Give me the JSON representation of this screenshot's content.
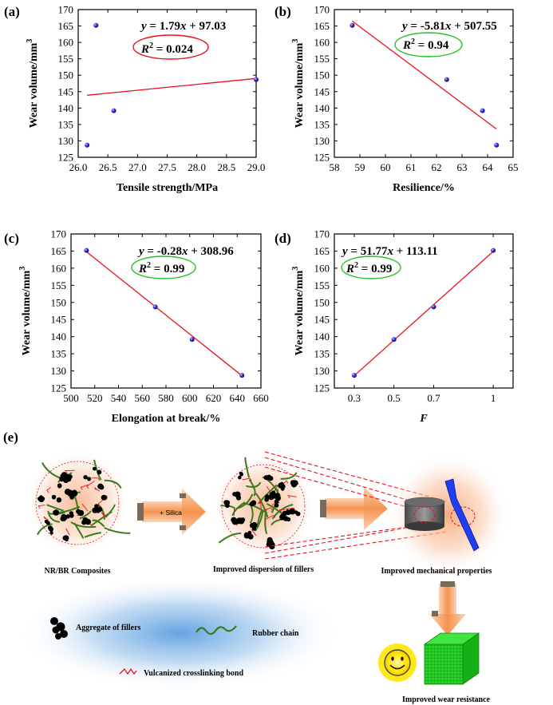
{
  "chart_data": [
    {
      "type": "scatter",
      "panel_label": "(a)",
      "xlabel": "Tensile strength/MPa",
      "ylabel": "Wear volume/mm",
      "ylabel_sup": "3",
      "xlim": [
        26.0,
        29.0
      ],
      "ylim": [
        125,
        170
      ],
      "xticks": [
        "26.0",
        "26.5",
        "27.0",
        "27.5",
        "28.0",
        "28.5",
        "29.0"
      ],
      "yticks": [
        "125",
        "130",
        "135",
        "140",
        "145",
        "150",
        "155",
        "160",
        "165",
        "170"
      ],
      "points": [
        {
          "x": 26.15,
          "y": 128.7
        },
        {
          "x": 26.3,
          "y": 165.2
        },
        {
          "x": 26.6,
          "y": 139.2
        },
        {
          "x": 29.0,
          "y": 148.7
        }
      ],
      "fit": {
        "x": [
          26.15,
          29.0
        ],
        "y": [
          143.9,
          149.0
        ]
      },
      "equation_y": "y",
      "equation_rest": " = 1.79",
      "equation_x": "x",
      "equation_tail": " + 97.03",
      "r2_prefix": "R",
      "r2_sup": "2",
      "r2_value": " = 0.024",
      "highlight_color": "#e8111b"
    },
    {
      "type": "scatter",
      "panel_label": "(b)",
      "xlabel": "Resilience/%",
      "ylabel": "Wear volume/mm",
      "ylabel_sup": "3",
      "xlim": [
        58,
        65
      ],
      "ylim": [
        125,
        170
      ],
      "xticks": [
        "58",
        "59",
        "60",
        "61",
        "62",
        "63",
        "64",
        "65"
      ],
      "yticks": [
        "125",
        "130",
        "135",
        "140",
        "145",
        "150",
        "155",
        "160",
        "165",
        "170"
      ],
      "points": [
        {
          "x": 58.7,
          "y": 165.2
        },
        {
          "x": 62.4,
          "y": 148.7
        },
        {
          "x": 63.8,
          "y": 139.2
        },
        {
          "x": 64.35,
          "y": 128.7
        }
      ],
      "fit": {
        "x": [
          58.7,
          64.35
        ],
        "y": [
          166.5,
          133.6
        ]
      },
      "equation_y": "y",
      "equation_rest": " = -5.81",
      "equation_x": "x",
      "equation_tail": " + 507.55",
      "r2_prefix": "R",
      "r2_sup": "2",
      "r2_value": " = 0.94",
      "highlight_color": "#26c22a"
    },
    {
      "type": "scatter",
      "panel_label": "(c)",
      "xlabel": "Elongation at break/%",
      "ylabel": "Wear volume/mm",
      "ylabel_sup": "3",
      "xlim": [
        500,
        660
      ],
      "ylim": [
        125,
        170
      ],
      "xticks": [
        "500",
        "520",
        "540",
        "560",
        "580",
        "600",
        "620",
        "640",
        "660"
      ],
      "yticks": [
        "125",
        "130",
        "135",
        "140",
        "145",
        "150",
        "155",
        "160",
        "165",
        "170"
      ],
      "points": [
        {
          "x": 513,
          "y": 165.2
        },
        {
          "x": 571,
          "y": 148.7
        },
        {
          "x": 602,
          "y": 139.2
        },
        {
          "x": 644,
          "y": 128.7
        }
      ],
      "fit": {
        "x": [
          513,
          644
        ],
        "y": [
          164.8,
          128.6
        ]
      },
      "equation_y": "y",
      "equation_rest": " = -0.28",
      "equation_x": "x",
      "equation_tail": " + 308.96",
      "r2_prefix": "R",
      "r2_sup": "2",
      "r2_value": " = 0.99",
      "highlight_color": "#26c22a"
    },
    {
      "type": "scatter",
      "panel_label": "(d)",
      "xlabel": "F",
      "ylabel": "Wear volume/mm",
      "ylabel_sup": "3",
      "xlim": [
        0.2,
        1.1
      ],
      "ylim": [
        125,
        170
      ],
      "xticks": [
        "0.3",
        "0.5",
        "0.7",
        "1"
      ],
      "xtick_values": [
        0.3,
        0.5,
        0.7,
        1.0
      ],
      "yticks": [
        "125",
        "130",
        "135",
        "140",
        "145",
        "150",
        "155",
        "160",
        "165",
        "170"
      ],
      "points": [
        {
          "x": 0.3,
          "y": 128.7
        },
        {
          "x": 0.5,
          "y": 139.2
        },
        {
          "x": 0.7,
          "y": 148.7
        },
        {
          "x": 1.0,
          "y": 165.2
        }
      ],
      "fit": {
        "x": [
          0.3,
          1.0
        ],
        "y": [
          128.6,
          164.9
        ]
      },
      "equation_y": "y",
      "equation_rest": " = 51.77",
      "equation_x": "x",
      "equation_tail": " + 113.11",
      "r2_prefix": "R",
      "r2_sup": "2",
      "r2_value": " = 0.99",
      "highlight_color": "#26c22a"
    }
  ],
  "schematic": {
    "panel_label": "(e)",
    "composite_label": "NR/BR Composites",
    "silica_label": "+ Silica",
    "dispersion_label": "Improved dispersion of fillers",
    "mechanical_label": "Improved mechanical properties",
    "wear_label": "Improved wear resistance",
    "legend_aggregate": "Aggregate of fillers",
    "legend_chain": "Rubber chain",
    "legend_bond": "Vulcanized crosslinking bond",
    "colors": {
      "arrow": "#f6a36a",
      "glow": "#f7b894",
      "chain": "#3a7a1e",
      "bond": "#e8111b",
      "cube": "#1fd61f",
      "dumbbell": "#1f3ff2",
      "smiley": "#ffe600",
      "legend_bg": "#6aa8dd"
    }
  }
}
